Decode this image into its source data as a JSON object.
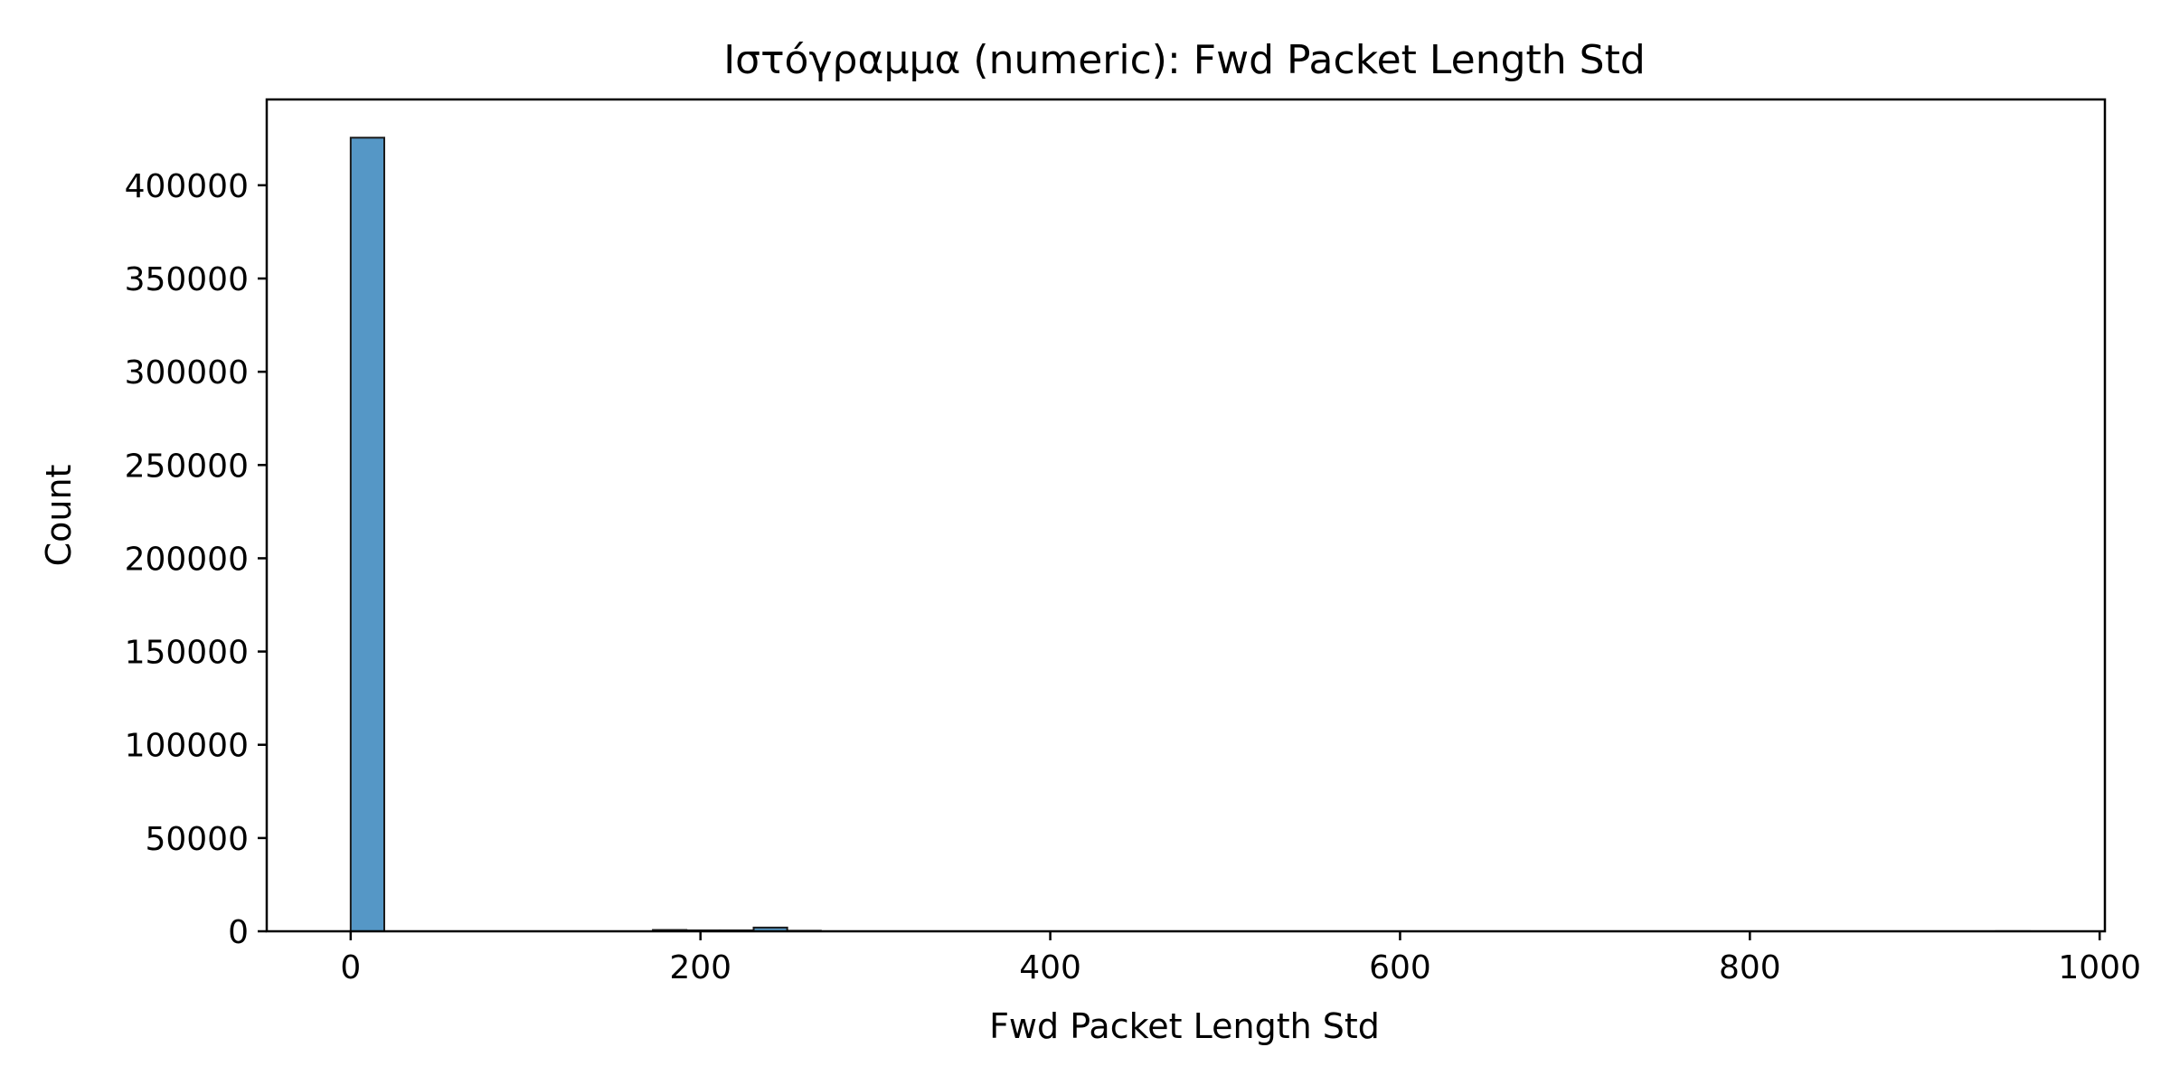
{
  "chart_data": {
    "type": "bar",
    "title": "Ιστόγραμμα (numeric): Fwd Packet Length Std",
    "xlabel": "Fwd Packet Length Std",
    "ylabel": "Count",
    "xlim": [
      -48,
      1003
    ],
    "ylim": [
      0,
      446000
    ],
    "x_ticks": [
      0,
      200,
      400,
      600,
      800,
      1000
    ],
    "x_tick_labels": [
      "0",
      "200",
      "400",
      "600",
      "800",
      "1000"
    ],
    "y_ticks": [
      0,
      50000,
      100000,
      150000,
      200000,
      250000,
      300000,
      350000,
      400000
    ],
    "y_tick_labels": [
      "0",
      "50000",
      "100000",
      "150000",
      "200000",
      "250000",
      "300000",
      "350000",
      "400000"
    ],
    "bin_width": 19.2,
    "bin_starts": [
      0,
      19.2,
      38.4,
      57.6,
      76.8,
      96,
      115.2,
      134.4,
      153.6,
      172.8,
      192,
      211.2,
      230.4,
      249.6,
      268.8,
      288,
      307.2,
      326.4,
      345.6,
      364.8,
      384,
      403.2,
      422.4,
      441.6,
      460.8,
      480,
      499.2,
      518.4,
      537.6,
      556.8,
      576,
      595.2,
      614.4,
      633.6,
      652.8,
      672,
      691.2,
      710.4,
      729.6,
      748.8,
      768,
      787.2,
      806.4,
      825.6,
      844.8,
      864,
      883.2,
      902.4,
      921.6,
      940.8
    ],
    "values": [
      425500,
      0,
      0,
      0,
      0,
      0,
      0,
      0,
      0,
      700,
      500,
      500,
      2000,
      300,
      0,
      0,
      0,
      0,
      0,
      0,
      0,
      0,
      0,
      0,
      0,
      0,
      0,
      0,
      0,
      0,
      0,
      0,
      0,
      0,
      0,
      0,
      0,
      0,
      0,
      0,
      0,
      0,
      0,
      0,
      0,
      0,
      0,
      0,
      0,
      50
    ],
    "bar_color": "#5597c6",
    "edge_color": "#1a1a1a",
    "grid": false
  }
}
